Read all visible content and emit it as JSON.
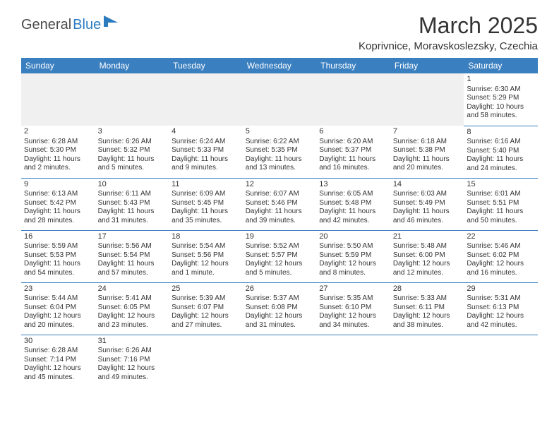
{
  "brand": {
    "part1": "General",
    "part2": "Blue"
  },
  "title": "March 2025",
  "location": "Koprivnice, Moravskoslezsky, Czechia",
  "header_color": "#3a7fc0",
  "days": [
    "Sunday",
    "Monday",
    "Tuesday",
    "Wednesday",
    "Thursday",
    "Friday",
    "Saturday"
  ],
  "weeks": [
    [
      null,
      null,
      null,
      null,
      null,
      null,
      {
        "n": "1",
        "sr": "Sunrise: 6:30 AM",
        "ss": "Sunset: 5:29 PM",
        "dl": "Daylight: 10 hours and 58 minutes."
      }
    ],
    [
      {
        "n": "2",
        "sr": "Sunrise: 6:28 AM",
        "ss": "Sunset: 5:30 PM",
        "dl": "Daylight: 11 hours and 2 minutes."
      },
      {
        "n": "3",
        "sr": "Sunrise: 6:26 AM",
        "ss": "Sunset: 5:32 PM",
        "dl": "Daylight: 11 hours and 5 minutes."
      },
      {
        "n": "4",
        "sr": "Sunrise: 6:24 AM",
        "ss": "Sunset: 5:33 PM",
        "dl": "Daylight: 11 hours and 9 minutes."
      },
      {
        "n": "5",
        "sr": "Sunrise: 6:22 AM",
        "ss": "Sunset: 5:35 PM",
        "dl": "Daylight: 11 hours and 13 minutes."
      },
      {
        "n": "6",
        "sr": "Sunrise: 6:20 AM",
        "ss": "Sunset: 5:37 PM",
        "dl": "Daylight: 11 hours and 16 minutes."
      },
      {
        "n": "7",
        "sr": "Sunrise: 6:18 AM",
        "ss": "Sunset: 5:38 PM",
        "dl": "Daylight: 11 hours and 20 minutes."
      },
      {
        "n": "8",
        "sr": "Sunrise: 6:16 AM",
        "ss": "Sunset: 5:40 PM",
        "dl": "Daylight: 11 hours and 24 minutes."
      }
    ],
    [
      {
        "n": "9",
        "sr": "Sunrise: 6:13 AM",
        "ss": "Sunset: 5:42 PM",
        "dl": "Daylight: 11 hours and 28 minutes."
      },
      {
        "n": "10",
        "sr": "Sunrise: 6:11 AM",
        "ss": "Sunset: 5:43 PM",
        "dl": "Daylight: 11 hours and 31 minutes."
      },
      {
        "n": "11",
        "sr": "Sunrise: 6:09 AM",
        "ss": "Sunset: 5:45 PM",
        "dl": "Daylight: 11 hours and 35 minutes."
      },
      {
        "n": "12",
        "sr": "Sunrise: 6:07 AM",
        "ss": "Sunset: 5:46 PM",
        "dl": "Daylight: 11 hours and 39 minutes."
      },
      {
        "n": "13",
        "sr": "Sunrise: 6:05 AM",
        "ss": "Sunset: 5:48 PM",
        "dl": "Daylight: 11 hours and 42 minutes."
      },
      {
        "n": "14",
        "sr": "Sunrise: 6:03 AM",
        "ss": "Sunset: 5:49 PM",
        "dl": "Daylight: 11 hours and 46 minutes."
      },
      {
        "n": "15",
        "sr": "Sunrise: 6:01 AM",
        "ss": "Sunset: 5:51 PM",
        "dl": "Daylight: 11 hours and 50 minutes."
      }
    ],
    [
      {
        "n": "16",
        "sr": "Sunrise: 5:59 AM",
        "ss": "Sunset: 5:53 PM",
        "dl": "Daylight: 11 hours and 54 minutes."
      },
      {
        "n": "17",
        "sr": "Sunrise: 5:56 AM",
        "ss": "Sunset: 5:54 PM",
        "dl": "Daylight: 11 hours and 57 minutes."
      },
      {
        "n": "18",
        "sr": "Sunrise: 5:54 AM",
        "ss": "Sunset: 5:56 PM",
        "dl": "Daylight: 12 hours and 1 minute."
      },
      {
        "n": "19",
        "sr": "Sunrise: 5:52 AM",
        "ss": "Sunset: 5:57 PM",
        "dl": "Daylight: 12 hours and 5 minutes."
      },
      {
        "n": "20",
        "sr": "Sunrise: 5:50 AM",
        "ss": "Sunset: 5:59 PM",
        "dl": "Daylight: 12 hours and 8 minutes."
      },
      {
        "n": "21",
        "sr": "Sunrise: 5:48 AM",
        "ss": "Sunset: 6:00 PM",
        "dl": "Daylight: 12 hours and 12 minutes."
      },
      {
        "n": "22",
        "sr": "Sunrise: 5:46 AM",
        "ss": "Sunset: 6:02 PM",
        "dl": "Daylight: 12 hours and 16 minutes."
      }
    ],
    [
      {
        "n": "23",
        "sr": "Sunrise: 5:44 AM",
        "ss": "Sunset: 6:04 PM",
        "dl": "Daylight: 12 hours and 20 minutes."
      },
      {
        "n": "24",
        "sr": "Sunrise: 5:41 AM",
        "ss": "Sunset: 6:05 PM",
        "dl": "Daylight: 12 hours and 23 minutes."
      },
      {
        "n": "25",
        "sr": "Sunrise: 5:39 AM",
        "ss": "Sunset: 6:07 PM",
        "dl": "Daylight: 12 hours and 27 minutes."
      },
      {
        "n": "26",
        "sr": "Sunrise: 5:37 AM",
        "ss": "Sunset: 6:08 PM",
        "dl": "Daylight: 12 hours and 31 minutes."
      },
      {
        "n": "27",
        "sr": "Sunrise: 5:35 AM",
        "ss": "Sunset: 6:10 PM",
        "dl": "Daylight: 12 hours and 34 minutes."
      },
      {
        "n": "28",
        "sr": "Sunrise: 5:33 AM",
        "ss": "Sunset: 6:11 PM",
        "dl": "Daylight: 12 hours and 38 minutes."
      },
      {
        "n": "29",
        "sr": "Sunrise: 5:31 AM",
        "ss": "Sunset: 6:13 PM",
        "dl": "Daylight: 12 hours and 42 minutes."
      }
    ],
    [
      {
        "n": "30",
        "sr": "Sunrise: 6:28 AM",
        "ss": "Sunset: 7:14 PM",
        "dl": "Daylight: 12 hours and 45 minutes."
      },
      {
        "n": "31",
        "sr": "Sunrise: 6:26 AM",
        "ss": "Sunset: 7:16 PM",
        "dl": "Daylight: 12 hours and 49 minutes."
      },
      null,
      null,
      null,
      null,
      null
    ]
  ]
}
